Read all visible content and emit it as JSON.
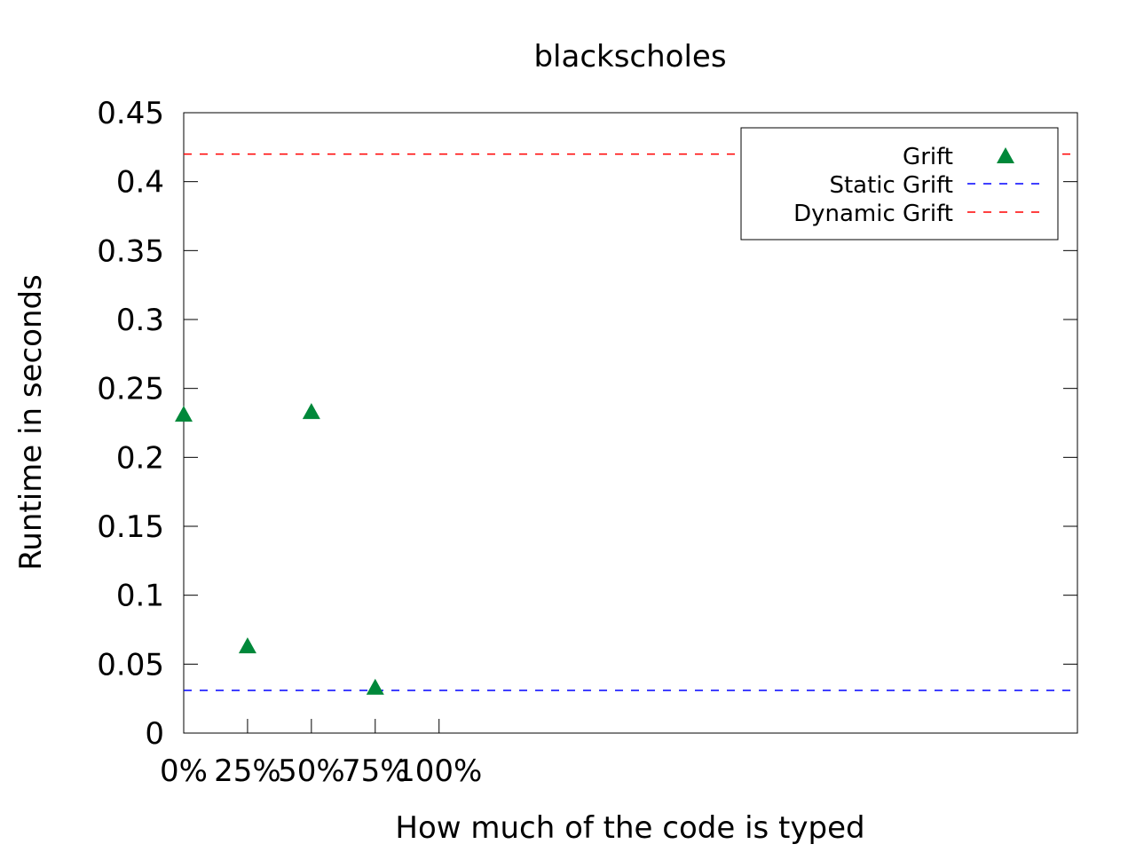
{
  "chart_data": {
    "type": "scatter",
    "title": "blackscholes",
    "xlabel": "How much of the code is typed",
    "ylabel": "Runtime in seconds",
    "x_ticks": [
      "0%",
      "25%",
      "50%",
      "75%",
      "100%"
    ],
    "x_tick_values": [
      0,
      25,
      50,
      75,
      100
    ],
    "xlim": [
      0,
      350
    ],
    "y_ticks": [
      "0",
      "0.05",
      "0.1",
      "0.15",
      "0.2",
      "0.25",
      "0.3",
      "0.35",
      "0.4",
      "0.45"
    ],
    "y_tick_values": [
      0,
      0.05,
      0.1,
      0.15,
      0.2,
      0.25,
      0.3,
      0.35,
      0.4,
      0.45
    ],
    "ylim": [
      0,
      0.45
    ],
    "grid": false,
    "legend_position": "top-right",
    "series": [
      {
        "name": "Grift",
        "marker": "triangle",
        "color": "#00883a",
        "points": [
          {
            "x": 0,
            "y": 0.231
          },
          {
            "x": 25,
            "y": 0.063
          },
          {
            "x": 50,
            "y": 0.233
          },
          {
            "x": 75,
            "y": 0.033
          }
        ]
      }
    ],
    "reference_lines": [
      {
        "name": "Static Grift",
        "y": 0.031,
        "color": "#0000ff",
        "style": "dashed"
      },
      {
        "name": "Dynamic Grift",
        "y": 0.42,
        "color": "#ff0000",
        "style": "dashed"
      }
    ]
  }
}
